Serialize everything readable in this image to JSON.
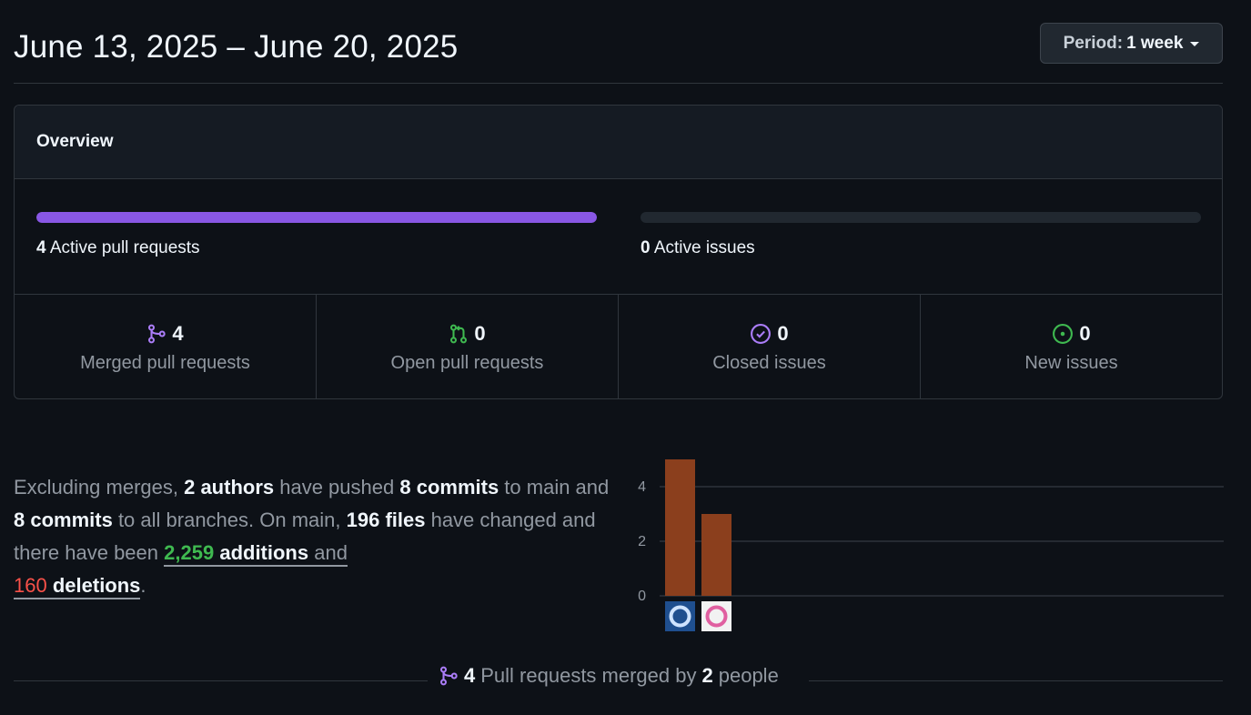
{
  "header": {
    "date_range": "June 13, 2025 – June 20, 2025",
    "period_label": "Period:",
    "period_value": "1 week"
  },
  "overview": {
    "title": "Overview",
    "pull_requests_bar": {
      "count": "4",
      "label": "Active pull requests",
      "fill_fraction": 1.0,
      "color": "#8957e5"
    },
    "issues_bar": {
      "count": "0",
      "label": "Active issues",
      "fill_fraction": 0.0
    },
    "stats": [
      {
        "icon": "git-merge-icon",
        "count": "4",
        "label": "Merged pull requests",
        "color": "#ab7df8"
      },
      {
        "icon": "git-pull-request-icon",
        "count": "0",
        "label": "Open pull requests",
        "color": "#3fb950"
      },
      {
        "icon": "issue-closed-icon",
        "count": "0",
        "label": "Closed issues",
        "color": "#ab7df8"
      },
      {
        "icon": "issue-opened-icon",
        "count": "0",
        "label": "New issues",
        "color": "#3fb950"
      }
    ]
  },
  "summary": {
    "p1": "Excluding merges, ",
    "authors": "2 authors",
    "p2": " have pushed ",
    "commits_main": "8 commits",
    "p3": " to main and ",
    "commits_all": "8 commits",
    "p4": " to all branches. On main, ",
    "files": "196 files",
    "p5": " have changed and there have been ",
    "additions_count": "2,259",
    "additions_word": "additions",
    "p6": " and",
    "deletions_count": "160",
    "deletions_word": "deletions",
    "p7": "."
  },
  "chart_data": {
    "type": "bar",
    "categories": [
      "contributor-1",
      "contributor-2"
    ],
    "values": [
      5,
      3
    ],
    "y_ticks": [
      0,
      2,
      4
    ],
    "ylim": [
      0,
      5
    ],
    "bar_color": "#8b3f1d",
    "grid": true,
    "xlabel": "",
    "ylabel": ""
  },
  "footer": {
    "icon": "git-merge-icon",
    "pr_count": "4",
    "mid": "Pull requests merged by",
    "people_count": "2",
    "end": "people"
  }
}
